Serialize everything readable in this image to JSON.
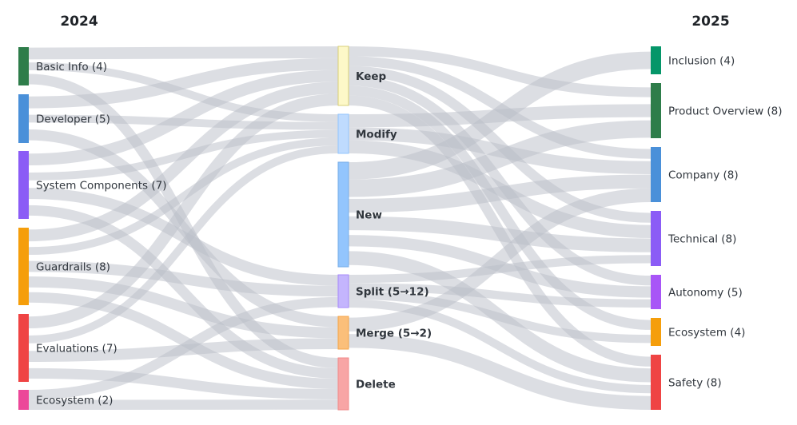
{
  "titles": {
    "left": "2024",
    "right": "2025"
  },
  "left_nodes": [
    {
      "id": "L1",
      "label": "Basic Info (4)",
      "color": "#2e7d4a"
    },
    {
      "id": "L2",
      "label": "Developer (5)",
      "color": "#4a90d9"
    },
    {
      "id": "L3",
      "label": "System Components (7)",
      "color": "#8b5cf6"
    },
    {
      "id": "L4",
      "label": "Guardrails (8)",
      "color": "#f59e0b"
    },
    {
      "id": "L5",
      "label": "Evaluations (7)",
      "color": "#ef4444"
    },
    {
      "id": "L6",
      "label": "Ecosystem (2)",
      "color": "#ec4899"
    }
  ],
  "middle_nodes": [
    {
      "id": "M1",
      "label": "Keep",
      "color": "#fdf8c8",
      "border": "#d8cf7a"
    },
    {
      "id": "M2",
      "label": "Modify",
      "color": "#bfdbfe",
      "border": "#93c5fd"
    },
    {
      "id": "M3",
      "label": "New",
      "color": "#93c5fd",
      "border": "#7aaee8"
    },
    {
      "id": "M4",
      "label": "Split (5→12)",
      "color": "#c4b5fd",
      "border": "#a78bfa"
    },
    {
      "id": "M5",
      "label": "Merge (5→2)",
      "color": "#fbbf7a",
      "border": "#f5a54a"
    },
    {
      "id": "M6",
      "label": "Delete",
      "color": "#f8a5a5",
      "border": "#f08a8a"
    }
  ],
  "right_nodes": [
    {
      "id": "R1",
      "label": "Inclusion (4)",
      "color": "#059669"
    },
    {
      "id": "R2",
      "label": "Product Overview (8)",
      "color": "#2e7d4a"
    },
    {
      "id": "R3",
      "label": "Company (8)",
      "color": "#4a90d9"
    },
    {
      "id": "R4",
      "label": "Technical (8)",
      "color": "#8b5cf6"
    },
    {
      "id": "R5",
      "label": "Autonomy (5)",
      "color": "#a855f7"
    },
    {
      "id": "R6",
      "label": "Ecosystem (4)",
      "color": "#f59e0b"
    },
    {
      "id": "R7",
      "label": "Safety (8)",
      "color": "#ef4444"
    }
  ],
  "links": [
    {
      "from": "L1",
      "to": "M1"
    },
    {
      "from": "L1",
      "to": "M2"
    },
    {
      "from": "L1",
      "to": "M6"
    },
    {
      "from": "L2",
      "to": "M1"
    },
    {
      "from": "L2",
      "to": "M2"
    },
    {
      "from": "L2",
      "to": "M5"
    },
    {
      "from": "L3",
      "to": "M1"
    },
    {
      "from": "L3",
      "to": "M2"
    },
    {
      "from": "L3",
      "to": "M4"
    },
    {
      "from": "L3",
      "to": "M6"
    },
    {
      "from": "L4",
      "to": "M1"
    },
    {
      "from": "L4",
      "to": "M2"
    },
    {
      "from": "L4",
      "to": "M4"
    },
    {
      "from": "L4",
      "to": "M5"
    },
    {
      "from": "L4",
      "to": "M6"
    },
    {
      "from": "L5",
      "to": "M1"
    },
    {
      "from": "L5",
      "to": "M2"
    },
    {
      "from": "L5",
      "to": "M5"
    },
    {
      "from": "L5",
      "to": "M6"
    },
    {
      "from": "L6",
      "to": "M4"
    },
    {
      "from": "L6",
      "to": "M6"
    },
    {
      "from": "M1",
      "to": "R2"
    },
    {
      "from": "M1",
      "to": "R3"
    },
    {
      "from": "M1",
      "to": "R4"
    },
    {
      "from": "M1",
      "to": "R5"
    },
    {
      "from": "M1",
      "to": "R6"
    },
    {
      "from": "M1",
      "to": "R7"
    },
    {
      "from": "M2",
      "to": "R2"
    },
    {
      "from": "M2",
      "to": "R3"
    },
    {
      "from": "M2",
      "to": "R4"
    },
    {
      "from": "M3",
      "to": "R1"
    },
    {
      "from": "M3",
      "to": "R2"
    },
    {
      "from": "M3",
      "to": "R3"
    },
    {
      "from": "M3",
      "to": "R4"
    },
    {
      "from": "M3",
      "to": "R5"
    },
    {
      "from": "M3",
      "to": "R7"
    },
    {
      "from": "M4",
      "to": "R4"
    },
    {
      "from": "M4",
      "to": "R5"
    },
    {
      "from": "M4",
      "to": "R6"
    },
    {
      "from": "M4",
      "to": "R7"
    },
    {
      "from": "M5",
      "to": "R3"
    },
    {
      "from": "M5",
      "to": "R7"
    }
  ]
}
